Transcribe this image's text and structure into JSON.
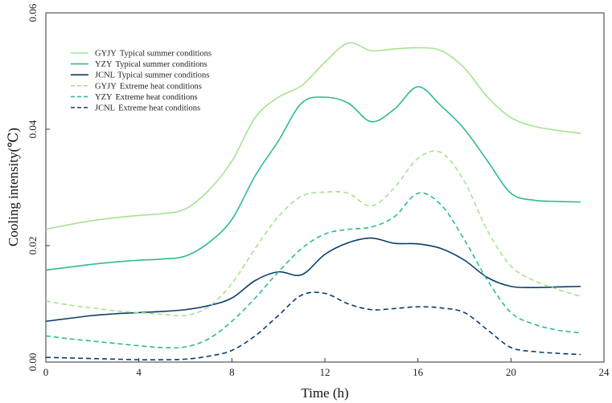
{
  "chart_data": {
    "type": "line",
    "xlabel": "Time (h)",
    "ylabel": "Cooling intensity(℃)",
    "xlim": [
      0,
      24
    ],
    "ylim": [
      0,
      0.06
    ],
    "x_ticks": [
      0,
      4,
      8,
      12,
      16,
      20,
      24
    ],
    "y_ticks": [
      0,
      0.02,
      0.04,
      0.06
    ],
    "x_tick_labels": [
      "0",
      "4",
      "8",
      "12",
      "16",
      "20",
      "24"
    ],
    "y_tick_labels": [
      "0.00",
      "0.02",
      "0.04",
      "0.06"
    ],
    "legend_position": "top-left",
    "x": [
      0,
      1,
      2,
      3,
      4,
      5,
      6,
      7,
      8,
      9,
      10,
      11,
      12,
      13,
      14,
      15,
      16,
      17,
      18,
      19,
      20,
      21,
      22,
      23
    ],
    "series": [
      {
        "name": "GYJY Typical summer conditions",
        "label_code": "GYJY",
        "label_desc": "Typical summer conditions",
        "color": "#a6e38f",
        "dash": "solid",
        "values": [
          0.0228,
          0.0236,
          0.0243,
          0.0248,
          0.0252,
          0.0255,
          0.0263,
          0.0295,
          0.0345,
          0.042,
          0.0455,
          0.0475,
          0.0515,
          0.0548,
          0.0535,
          0.0538,
          0.054,
          0.0535,
          0.0505,
          0.0455,
          0.042,
          0.0405,
          0.0398,
          0.0393
        ]
      },
      {
        "name": "YZY Typical summer conditions",
        "label_code": "YZY",
        "label_desc": "Typical summer conditions",
        "color": "#2dbd87",
        "dash": "solid",
        "values": [
          0.0158,
          0.0163,
          0.0168,
          0.0172,
          0.0175,
          0.0177,
          0.0182,
          0.0205,
          0.0245,
          0.032,
          0.038,
          0.0445,
          0.0455,
          0.0445,
          0.0413,
          0.0435,
          0.0473,
          0.044,
          0.04,
          0.0345,
          0.029,
          0.0278,
          0.0276,
          0.0275
        ]
      },
      {
        "name": "JCNL Typical summer conditions",
        "label_code": "JCNL",
        "label_desc": "Typical summer conditions",
        "color": "#0b3d6b",
        "dash": "solid",
        "values": [
          0.007,
          0.0075,
          0.008,
          0.0083,
          0.0085,
          0.0087,
          0.009,
          0.0097,
          0.011,
          0.014,
          0.0155,
          0.015,
          0.0185,
          0.0205,
          0.0213,
          0.0204,
          0.0203,
          0.0195,
          0.0175,
          0.0145,
          0.013,
          0.0128,
          0.0129,
          0.013
        ]
      },
      {
        "name": "GYJY Extreme heat conditions",
        "label_code": "GYJY",
        "label_desc": "Extreme heat conditions",
        "color": "#a6e38f",
        "dash": "dashed",
        "values": [
          0.0105,
          0.0098,
          0.0093,
          0.0088,
          0.0085,
          0.0082,
          0.008,
          0.0095,
          0.0135,
          0.0195,
          0.025,
          0.0285,
          0.0292,
          0.029,
          0.0268,
          0.03,
          0.035,
          0.036,
          0.031,
          0.0225,
          0.0165,
          0.014,
          0.0125,
          0.0113
        ]
      },
      {
        "name": "YZY Extreme heat conditions",
        "label_code": "YZY",
        "label_desc": "Extreme heat conditions",
        "color": "#2dbd87",
        "dash": "dashed",
        "values": [
          0.0045,
          0.004,
          0.0036,
          0.0032,
          0.0028,
          0.0025,
          0.0026,
          0.004,
          0.007,
          0.011,
          0.0155,
          0.0195,
          0.022,
          0.0228,
          0.0232,
          0.025,
          0.029,
          0.027,
          0.021,
          0.014,
          0.0085,
          0.0065,
          0.0055,
          0.005
        ]
      },
      {
        "name": "JCNL Extreme heat conditions",
        "label_code": "JCNL",
        "label_desc": "Extreme heat conditions",
        "color": "#0b3d6b",
        "dash": "dashed",
        "values": [
          0.0008,
          0.0007,
          0.0006,
          0.0005,
          0.0004,
          0.0004,
          0.0005,
          0.001,
          0.002,
          0.0045,
          0.008,
          0.0115,
          0.0118,
          0.01,
          0.009,
          0.0092,
          0.0095,
          0.0093,
          0.0085,
          0.0055,
          0.0025,
          0.0018,
          0.0015,
          0.0013
        ]
      }
    ]
  }
}
